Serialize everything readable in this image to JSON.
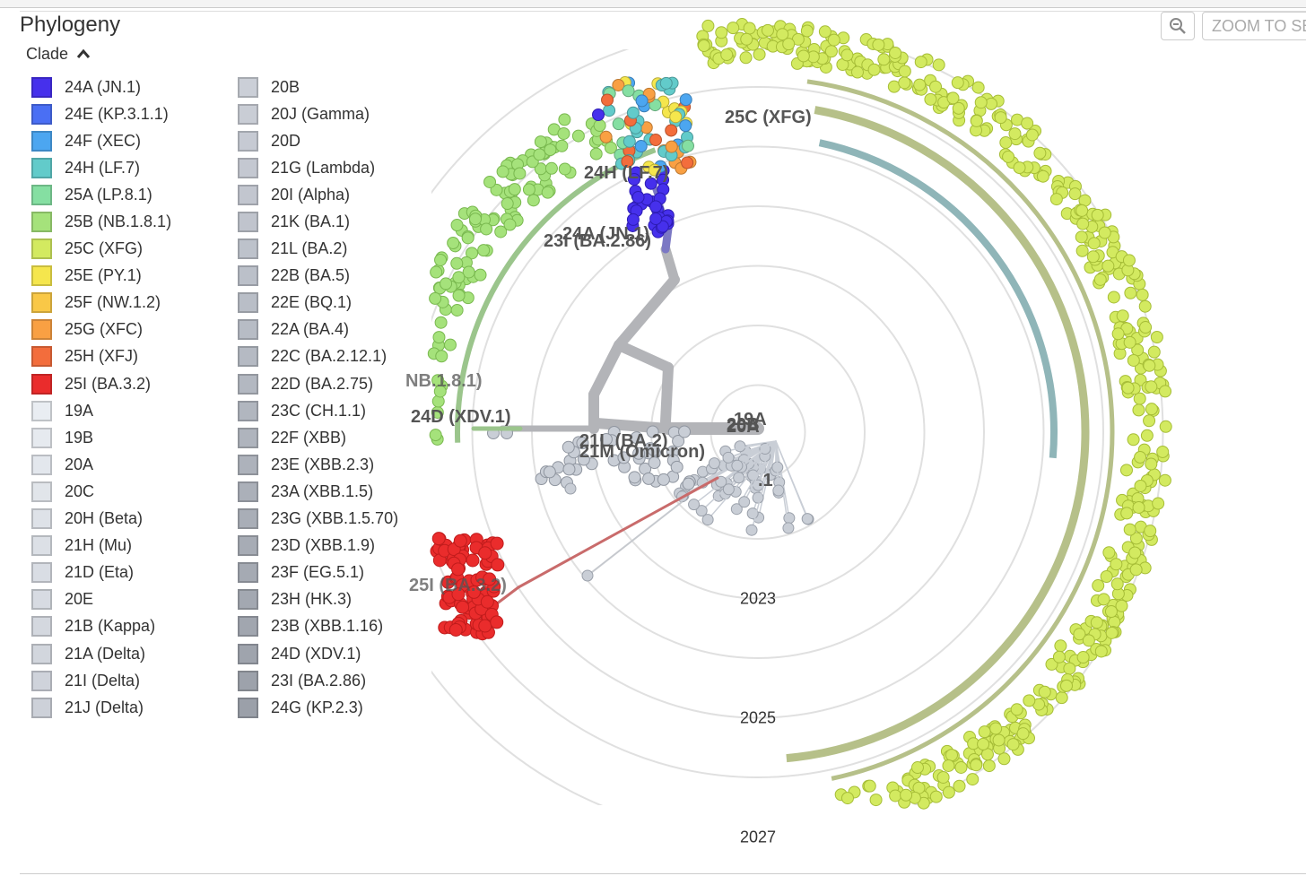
{
  "panel": {
    "title": "Phylogeny",
    "legend_toggle_label": "Clade",
    "legend_toggle_icon": "chevron-up-icon"
  },
  "toolbar": {
    "zoom_icon": "zoom-out-icon",
    "zoom_selected_label": "ZOOM TO SELECTED"
  },
  "legend": {
    "columns": [
      [
        {
          "label": "24A (JN.1)",
          "color": "#4630ec"
        },
        {
          "label": "24E (KP.3.1.1)",
          "color": "#4a6ff4"
        },
        {
          "label": "24F (XEC)",
          "color": "#4ca6f0"
        },
        {
          "label": "24H (LF.7)",
          "color": "#62cbca"
        },
        {
          "label": "25A (LP.8.1)",
          "color": "#85dfa2"
        },
        {
          "label": "25B (NB.1.8.1)",
          "color": "#a5e27b"
        },
        {
          "label": "25C (XFG)",
          "color": "#d3ea60"
        },
        {
          "label": "25E (PY.1)",
          "color": "#f5e64d"
        },
        {
          "label": "25F (NW.1.2)",
          "color": "#f9c847"
        },
        {
          "label": "25G (XFC)",
          "color": "#f9a043"
        },
        {
          "label": "25H (XFJ)",
          "color": "#f36d3c"
        },
        {
          "label": "25I (BA.3.2)",
          "color": "#ea2c2c"
        },
        {
          "label": "19A",
          "color": "#e9edf2"
        },
        {
          "label": "19B",
          "color": "#e6eaef"
        },
        {
          "label": "20A",
          "color": "#e3e7ed"
        },
        {
          "label": "20C",
          "color": "#e1e5ea"
        },
        {
          "label": "20H (Beta)",
          "color": "#dee2e8"
        },
        {
          "label": "21H (Mu)",
          "color": "#dce0e6"
        },
        {
          "label": "21D (Eta)",
          "color": "#d9dde4"
        },
        {
          "label": "20E",
          "color": "#d7dbe2"
        },
        {
          "label": "21B (Kappa)",
          "color": "#d4d8df"
        },
        {
          "label": "21A (Delta)",
          "color": "#d2d6dd"
        },
        {
          "label": "21I (Delta)",
          "color": "#cfd3db"
        },
        {
          "label": "21J (Delta)",
          "color": "#cdd1d9"
        }
      ],
      [
        {
          "label": "20B",
          "color": "#cbcfd7"
        },
        {
          "label": "20J (Gamma)",
          "color": "#c9cdd5"
        },
        {
          "label": "20D",
          "color": "#c6cad3"
        },
        {
          "label": "21G (Lambda)",
          "color": "#c4c8d1"
        },
        {
          "label": "20I (Alpha)",
          "color": "#c2c6cf"
        },
        {
          "label": "21K (BA.1)",
          "color": "#c0c4cd"
        },
        {
          "label": "21L (BA.2)",
          "color": "#bdc2cb"
        },
        {
          "label": "22B (BA.5)",
          "color": "#bbc0c9"
        },
        {
          "label": "22E (BQ.1)",
          "color": "#b9bec7"
        },
        {
          "label": "22A (BA.4)",
          "color": "#b7bcc5"
        },
        {
          "label": "22C (BA.2.12.1)",
          "color": "#b5bac3"
        },
        {
          "label": "22D (BA.2.75)",
          "color": "#b3b8c1"
        },
        {
          "label": "23C (CH.1.1)",
          "color": "#b1b6bf"
        },
        {
          "label": "22F (XBB)",
          "color": "#afb4bd"
        },
        {
          "label": "23E (XBB.2.3)",
          "color": "#adb2bb"
        },
        {
          "label": "23A (XBB.1.5)",
          "color": "#abb0b9"
        },
        {
          "label": "23G (XBB.1.5.70)",
          "color": "#a9aeb7"
        },
        {
          "label": "23D (XBB.1.9)",
          "color": "#a7acb5"
        },
        {
          "label": "23F (EG.5.1)",
          "color": "#a5aab3"
        },
        {
          "label": "23H (HK.3)",
          "color": "#a3a8b1"
        },
        {
          "label": "23B (XBB.1.16)",
          "color": "#a1a6af"
        },
        {
          "label": "24D (XDV.1)",
          "color": "#9fa4ad"
        },
        {
          "label": "23I (BA.2.86)",
          "color": "#9da2ab"
        },
        {
          "label": "24G (KP.2.3)",
          "color": "#9ba0a9"
        }
      ]
    ]
  },
  "tree": {
    "years": [
      {
        "label": "2023",
        "t": 2023
      },
      {
        "label": "2025",
        "t": 2025
      },
      {
        "label": "2027",
        "t": 2027
      }
    ],
    "clade_labels": [
      {
        "text": "25C (XFG)"
      },
      {
        "text": "24H (LF.7)"
      },
      {
        "text": "24A (JN.1)"
      },
      {
        "text": "23I (BA.2.86)"
      },
      {
        "text": "NB.1.8.1)"
      },
      {
        "text": "24D (XDV.1)"
      },
      {
        "text": "21L (BA.2)"
      },
      {
        "text": "21M (Omicron)"
      },
      {
        "text": "25I (BA.3.2)"
      },
      {
        "text": "20A"
      },
      {
        "text": "19A"
      },
      {
        "text": "20B"
      },
      {
        "text": ".1"
      }
    ],
    "tip_colors": {
      "xfg": "#d3ea60",
      "nb": "#a5e27b",
      "ba32": "#ea2c2c",
      "jn1": "#4630ec",
      "lf7": "#62cbca",
      "grey": "#c9ced6",
      "orange": "#f9a043",
      "yellow": "#f5e64d",
      "red2": "#f36d3c",
      "blue": "#4ca6f0"
    },
    "branch_colors": {
      "xfg": "#b6c089",
      "nb": "#9bc58c",
      "grey": "#b3b4b8",
      "ba32": "#c96b6b",
      "teal": "#8fb5b8",
      "purple": "#7b78c4"
    }
  }
}
